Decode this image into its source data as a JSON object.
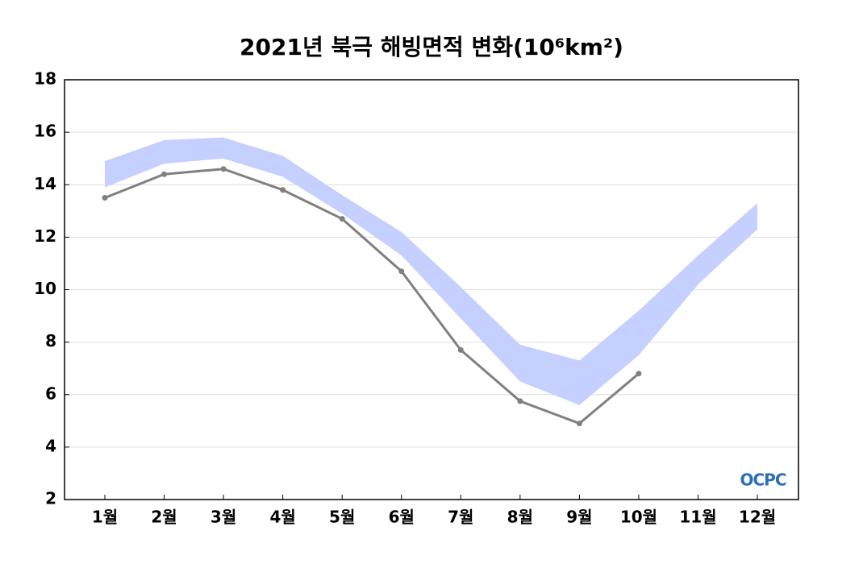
{
  "chart_data": {
    "type": "line",
    "title": "2021년 북극 해빙면적 변화(10⁶km²)",
    "categories": [
      "1월",
      "2월",
      "3월",
      "4월",
      "5월",
      "6월",
      "7월",
      "8월",
      "9월",
      "10월",
      "11월",
      "12월"
    ],
    "line": {
      "color": "#808080",
      "values": [
        13.5,
        14.4,
        14.6,
        13.8,
        12.7,
        10.7,
        7.7,
        5.75,
        4.9,
        6.8,
        null,
        null
      ]
    },
    "range": {
      "color": "#c5d0ff",
      "upper": [
        14.9,
        15.7,
        15.8,
        15.1,
        13.6,
        12.2,
        10.1,
        7.9,
        7.3,
        9.2,
        11.3,
        13.3
      ],
      "lower": [
        13.9,
        14.8,
        15.0,
        14.3,
        12.9,
        11.3,
        8.9,
        6.5,
        5.6,
        7.5,
        10.2,
        12.3
      ]
    },
    "ylim": [
      2,
      18
    ],
    "yticks": [
      2,
      4,
      6,
      8,
      10,
      12,
      14,
      16,
      18
    ],
    "grid": true,
    "logo": "OCPC"
  }
}
